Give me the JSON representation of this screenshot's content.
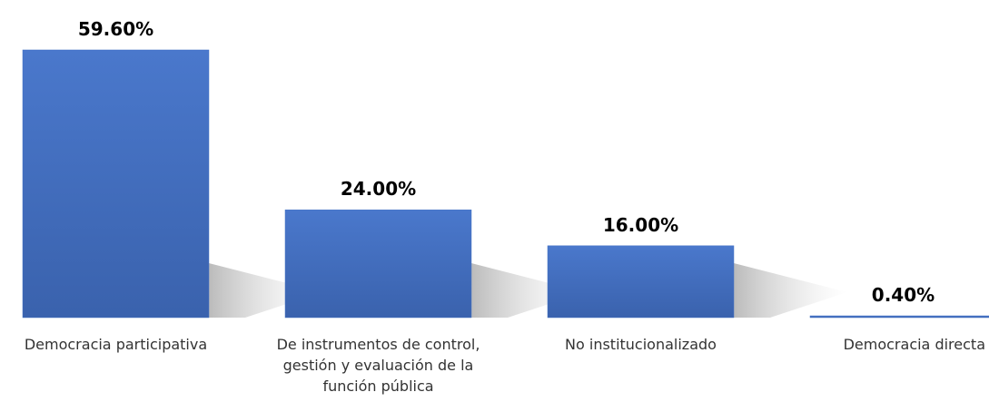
{
  "chart_data": {
    "type": "bar",
    "categories": [
      "Democracia participativa",
      "De instrumentos de control, gestión y evaluación de la función pública",
      "No institucionalizado",
      "Democracia directa"
    ],
    "values": [
      59.6,
      24,
      16,
      0.4
    ],
    "value_labels": [
      "59.60%",
      "24.00%",
      "16.00%",
      "0.40%"
    ],
    "color": "#4472c4"
  }
}
